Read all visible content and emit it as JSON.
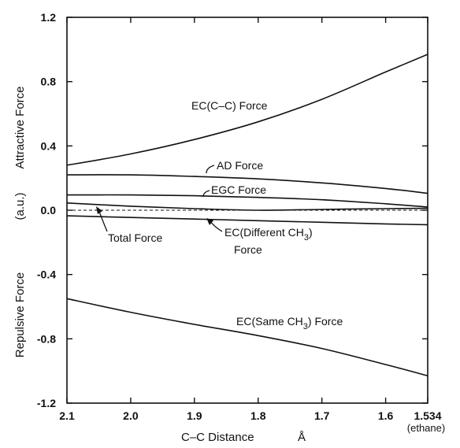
{
  "chart_data": {
    "type": "line",
    "xlabel_text": "C–C Distance",
    "xlabel_unit": "Å",
    "x_extra_label": "(ethane)",
    "ylabel_top": "Attractive Force",
    "ylabel_mid": "(a.u.)",
    "ylabel_bottom": "Repulsive Force",
    "xlim": [
      2.1,
      1.534
    ],
    "ylim": [
      -1.2,
      1.2
    ],
    "x_ticks": [
      {
        "value": 2.1,
        "label": "2.1"
      },
      {
        "value": 2.0,
        "label": "2.0"
      },
      {
        "value": 1.9,
        "label": "1.9"
      },
      {
        "value": 1.8,
        "label": "1.8"
      },
      {
        "value": 1.7,
        "label": "1.7"
      },
      {
        "value": 1.6,
        "label": "1.6"
      },
      {
        "value": 1.534,
        "label": "1.534"
      }
    ],
    "y_ticks": [
      {
        "value": 1.2,
        "label": "1.2"
      },
      {
        "value": 0.8,
        "label": "0.8"
      },
      {
        "value": 0.4,
        "label": "0.4"
      },
      {
        "value": 0.0,
        "label": "0.0"
      },
      {
        "value": -0.4,
        "label": "-0.4"
      },
      {
        "value": -0.8,
        "label": "-0.8"
      },
      {
        "value": -1.2,
        "label": "-1.2"
      }
    ],
    "zero_line": true,
    "series": [
      {
        "name": "EC(C–C) Force",
        "x": [
          2.1,
          2.0,
          1.9,
          1.8,
          1.7,
          1.6,
          1.534
        ],
        "y": [
          0.28,
          0.35,
          0.44,
          0.55,
          0.69,
          0.86,
          0.97
        ]
      },
      {
        "name": "AD Force",
        "x": [
          2.1,
          2.0,
          1.9,
          1.8,
          1.7,
          1.6,
          1.534
        ],
        "y": [
          0.22,
          0.22,
          0.21,
          0.195,
          0.17,
          0.135,
          0.105
        ]
      },
      {
        "name": "EGC Force",
        "x": [
          2.1,
          2.0,
          1.9,
          1.8,
          1.7,
          1.6,
          1.534
        ],
        "y": [
          0.095,
          0.095,
          0.09,
          0.08,
          0.065,
          0.04,
          0.02
        ]
      },
      {
        "name": "Total Force",
        "x": [
          2.1,
          2.0,
          1.9,
          1.8,
          1.7,
          1.6,
          1.534
        ],
        "y": [
          0.045,
          0.025,
          0.01,
          0.0,
          0.005,
          0.01,
          0.012
        ]
      },
      {
        "name": "EC(Different CH3) Force",
        "x": [
          2.1,
          2.0,
          1.9,
          1.8,
          1.7,
          1.6,
          1.534
        ],
        "y": [
          -0.035,
          -0.045,
          -0.055,
          -0.065,
          -0.075,
          -0.085,
          -0.09
        ]
      },
      {
        "name": "EC(Same CH3) Force",
        "x": [
          2.1,
          2.0,
          1.9,
          1.8,
          1.7,
          1.6,
          1.534
        ],
        "y": [
          -0.55,
          -0.635,
          -0.71,
          -0.78,
          -0.86,
          -0.96,
          -1.03
        ]
      }
    ],
    "annotations": [
      {
        "name": "ec-cc",
        "text": "EC(C–C) Force"
      },
      {
        "name": "ad",
        "text": "AD Force"
      },
      {
        "name": "egc",
        "text": "EGC Force"
      },
      {
        "name": "total",
        "text": "Total Force"
      },
      {
        "name": "ec-diff",
        "text": "EC(Different CH",
        "sub": "3",
        "text2": ")",
        "line2": "Force"
      },
      {
        "name": "ec-same",
        "text": "EC(Same CH",
        "sub": "3",
        "text2": ") Force"
      }
    ]
  }
}
